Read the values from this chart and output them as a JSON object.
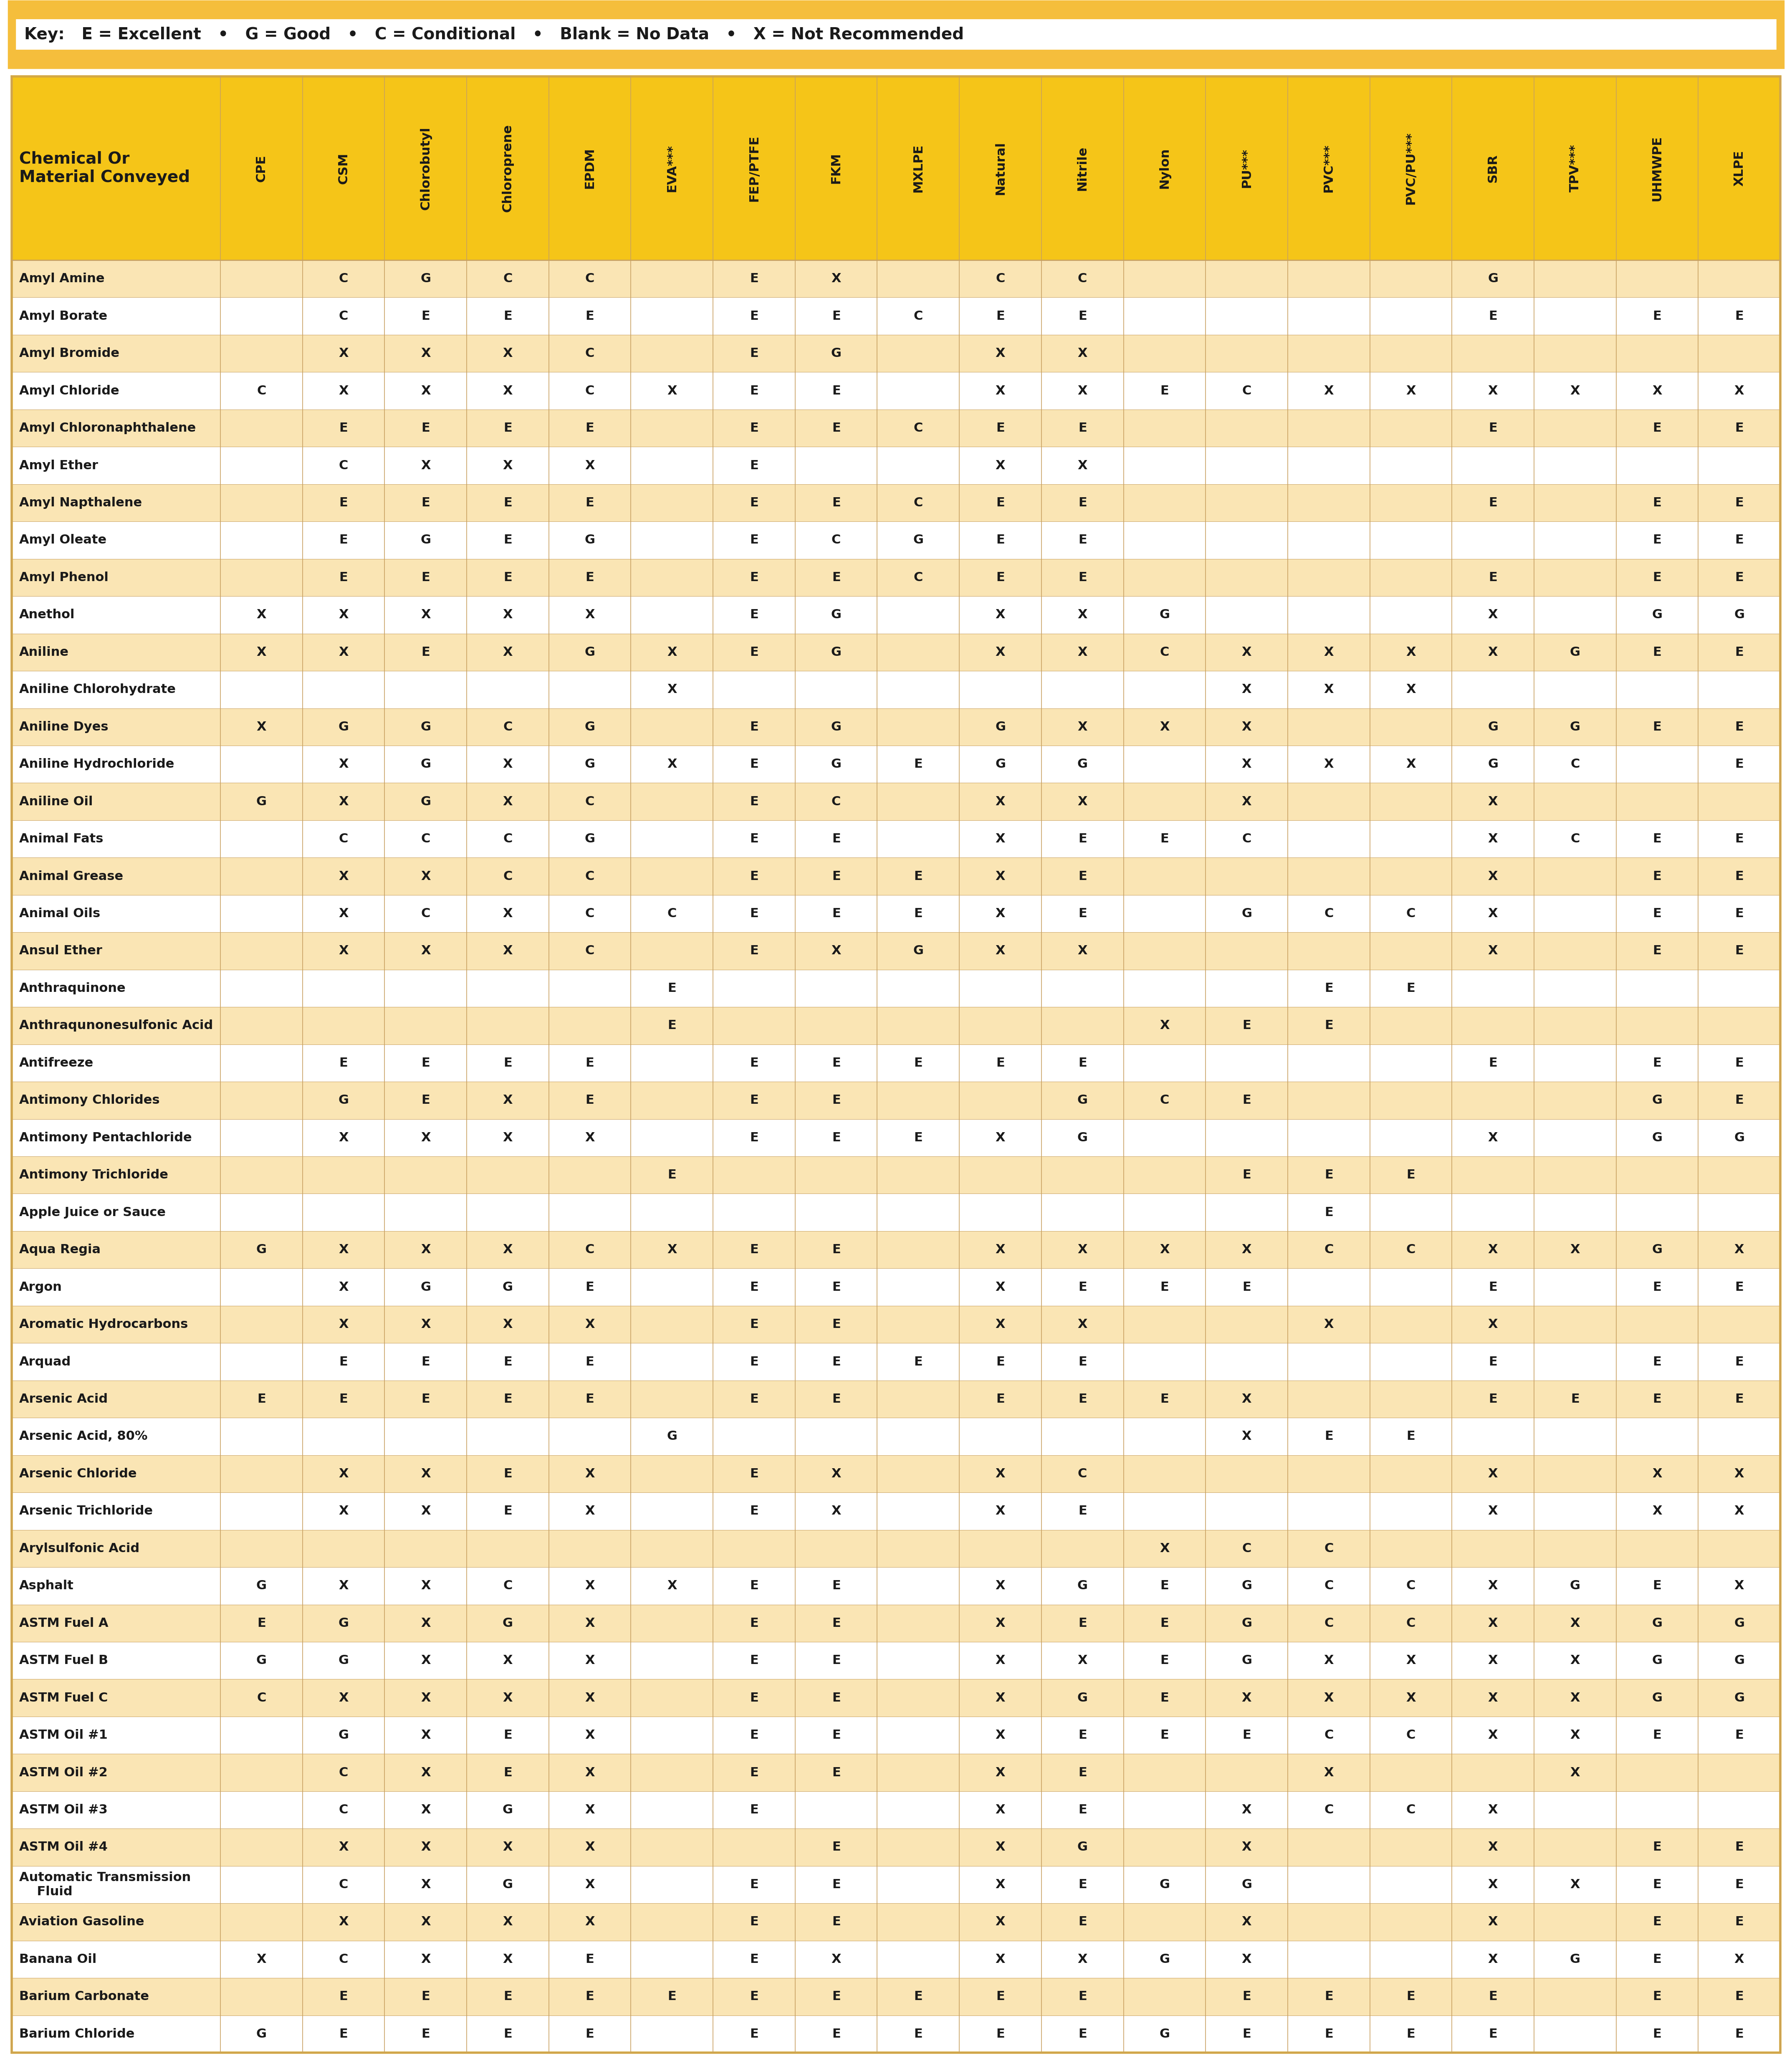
{
  "key_text": "Key:   E = Excellent   •   G = Good   •   C = Conditional   •   Blank = No Data   •   X = Not Recommended",
  "header_row": [
    "Chemical Or\nMaterial Conveyed",
    "CPE",
    "CSM",
    "Chlorobutyl",
    "Chloroprene",
    "EPDM",
    "EVA***",
    "FEP/PTFE",
    "FKM",
    "MXLPE",
    "Natural",
    "Nitrile",
    "Nylon",
    "PU***",
    "PVC***",
    "PVC/PU***",
    "SBR",
    "TPV***",
    "UHMWPE",
    "XLPE"
  ],
  "rows": [
    [
      "Amyl Amine",
      "",
      "C",
      "G",
      "C",
      "C",
      "",
      "E",
      "X",
      "",
      "C",
      "C",
      "",
      "",
      "",
      "",
      "G",
      "",
      "",
      ""
    ],
    [
      "Amyl Borate",
      "",
      "C",
      "E",
      "E",
      "E",
      "",
      "E",
      "E",
      "C",
      "E",
      "E",
      "",
      "",
      "",
      "",
      "E",
      "",
      "E",
      "E"
    ],
    [
      "Amyl Bromide",
      "",
      "X",
      "X",
      "X",
      "C",
      "",
      "E",
      "G",
      "",
      "X",
      "X",
      "",
      "",
      "",
      "",
      "",
      "",
      "",
      ""
    ],
    [
      "Amyl Chloride",
      "C",
      "X",
      "X",
      "X",
      "C",
      "X",
      "E",
      "E",
      "",
      "X",
      "X",
      "E",
      "C",
      "X",
      "X",
      "X",
      "X",
      "X",
      "X"
    ],
    [
      "Amyl Chloronaphthalene",
      "",
      "E",
      "E",
      "E",
      "E",
      "",
      "E",
      "E",
      "C",
      "E",
      "E",
      "",
      "",
      "",
      "",
      "E",
      "",
      "E",
      "E"
    ],
    [
      "Amyl Ether",
      "",
      "C",
      "X",
      "X",
      "X",
      "",
      "E",
      "",
      "",
      "X",
      "X",
      "",
      "",
      "",
      "",
      "",
      "",
      "",
      ""
    ],
    [
      "Amyl Napthalene",
      "",
      "E",
      "E",
      "E",
      "E",
      "",
      "E",
      "E",
      "C",
      "E",
      "E",
      "",
      "",
      "",
      "",
      "E",
      "",
      "E",
      "E"
    ],
    [
      "Amyl Oleate",
      "",
      "E",
      "G",
      "E",
      "G",
      "",
      "E",
      "C",
      "G",
      "E",
      "E",
      "",
      "",
      "",
      "",
      "",
      "",
      "E",
      "E"
    ],
    [
      "Amyl Phenol",
      "",
      "E",
      "E",
      "E",
      "E",
      "",
      "E",
      "E",
      "C",
      "E",
      "E",
      "",
      "",
      "",
      "",
      "E",
      "",
      "E",
      "E"
    ],
    [
      "Anethol",
      "X",
      "X",
      "X",
      "X",
      "X",
      "",
      "E",
      "G",
      "",
      "X",
      "X",
      "G",
      "",
      "",
      "",
      "X",
      "",
      "G",
      "G"
    ],
    [
      "Aniline",
      "X",
      "X",
      "E",
      "X",
      "G",
      "X",
      "E",
      "G",
      "",
      "X",
      "X",
      "C",
      "X",
      "X",
      "X",
      "X",
      "G",
      "E",
      "E"
    ],
    [
      "Aniline Chlorohydrate",
      "",
      "",
      "",
      "",
      "",
      "X",
      "",
      "",
      "",
      "",
      "",
      "",
      "X",
      "X",
      "X",
      "",
      "",
      "",
      ""
    ],
    [
      "Aniline Dyes",
      "X",
      "G",
      "G",
      "C",
      "G",
      "",
      "E",
      "G",
      "",
      "G",
      "X",
      "X",
      "X",
      "",
      "",
      "G",
      "G",
      "E",
      "E"
    ],
    [
      "Aniline Hydrochloride",
      "",
      "X",
      "G",
      "X",
      "G",
      "X",
      "E",
      "G",
      "E",
      "G",
      "G",
      "",
      "X",
      "X",
      "X",
      "G",
      "C",
      "",
      "E"
    ],
    [
      "Aniline Oil",
      "G",
      "X",
      "G",
      "X",
      "C",
      "",
      "E",
      "C",
      "",
      "X",
      "X",
      "",
      "X",
      "",
      "",
      "X",
      "",
      "",
      ""
    ],
    [
      "Animal Fats",
      "",
      "C",
      "C",
      "C",
      "G",
      "",
      "E",
      "E",
      "",
      "X",
      "E",
      "E",
      "C",
      "",
      "",
      "X",
      "C",
      "E",
      "E"
    ],
    [
      "Animal Grease",
      "",
      "X",
      "X",
      "C",
      "C",
      "",
      "E",
      "E",
      "E",
      "X",
      "E",
      "",
      "",
      "",
      "",
      "X",
      "",
      "E",
      "E"
    ],
    [
      "Animal Oils",
      "",
      "X",
      "C",
      "X",
      "C",
      "C",
      "E",
      "E",
      "E",
      "X",
      "E",
      "",
      "G",
      "C",
      "C",
      "X",
      "",
      "E",
      "E"
    ],
    [
      "Ansul Ether",
      "",
      "X",
      "X",
      "X",
      "C",
      "",
      "E",
      "X",
      "G",
      "X",
      "X",
      "",
      "",
      "",
      "",
      "X",
      "",
      "E",
      "E"
    ],
    [
      "Anthraquinone",
      "",
      "",
      "",
      "",
      "",
      "E",
      "",
      "",
      "",
      "",
      "",
      "",
      "",
      "E",
      "E",
      "",
      "",
      "",
      ""
    ],
    [
      "Anthraqunonesulfonic Acid",
      "",
      "",
      "",
      "",
      "",
      "E",
      "",
      "",
      "",
      "",
      "",
      "X",
      "E",
      "E",
      "",
      "",
      "",
      "",
      ""
    ],
    [
      "Antifreeze",
      "",
      "E",
      "E",
      "E",
      "E",
      "",
      "E",
      "E",
      "E",
      "E",
      "E",
      "",
      "",
      "",
      "",
      "E",
      "",
      "E",
      "E"
    ],
    [
      "Antimony Chlorides",
      "",
      "G",
      "E",
      "X",
      "E",
      "",
      "E",
      "E",
      "",
      "",
      "G",
      "C",
      "E",
      "",
      "",
      "",
      "",
      "G",
      "E"
    ],
    [
      "Antimony Pentachloride",
      "",
      "X",
      "X",
      "X",
      "X",
      "",
      "E",
      "E",
      "E",
      "X",
      "G",
      "",
      "",
      "",
      "",
      "X",
      "",
      "G",
      "G"
    ],
    [
      "Antimony Trichloride",
      "",
      "",
      "",
      "",
      "",
      "E",
      "",
      "",
      "",
      "",
      "",
      "",
      "E",
      "E",
      "E",
      "",
      "",
      "",
      ""
    ],
    [
      "Apple Juice or Sauce",
      "",
      "",
      "",
      "",
      "",
      "",
      "",
      "",
      "",
      "",
      "",
      "",
      "",
      "E",
      "",
      "",
      "",
      "",
      ""
    ],
    [
      "Aqua Regia",
      "G",
      "X",
      "X",
      "X",
      "C",
      "X",
      "E",
      "E",
      "",
      "X",
      "X",
      "X",
      "X",
      "C",
      "C",
      "X",
      "X",
      "G",
      "X"
    ],
    [
      "Argon",
      "",
      "X",
      "G",
      "G",
      "E",
      "",
      "E",
      "E",
      "",
      "X",
      "E",
      "E",
      "E",
      "",
      "",
      "E",
      "",
      "E",
      "E"
    ],
    [
      "Aromatic Hydrocarbons",
      "",
      "X",
      "X",
      "X",
      "X",
      "",
      "E",
      "E",
      "",
      "X",
      "X",
      "",
      "",
      "X",
      "",
      "X",
      "",
      "",
      ""
    ],
    [
      "Arquad",
      "",
      "E",
      "E",
      "E",
      "E",
      "",
      "E",
      "E",
      "E",
      "E",
      "E",
      "",
      "",
      "",
      "",
      "E",
      "",
      "E",
      "E"
    ],
    [
      "Arsenic Acid",
      "E",
      "E",
      "E",
      "E",
      "E",
      "",
      "E",
      "E",
      "",
      "E",
      "E",
      "E",
      "X",
      "",
      "",
      "E",
      "E",
      "E",
      "E"
    ],
    [
      "Arsenic Acid, 80%",
      "",
      "",
      "",
      "",
      "",
      "G",
      "",
      "",
      "",
      "",
      "",
      "",
      "X",
      "E",
      "E",
      "",
      "",
      "",
      ""
    ],
    [
      "Arsenic Chloride",
      "",
      "X",
      "X",
      "E",
      "X",
      "",
      "E",
      "X",
      "",
      "X",
      "C",
      "",
      "",
      "",
      "",
      "X",
      "",
      "X",
      "X"
    ],
    [
      "Arsenic Trichloride",
      "",
      "X",
      "X",
      "E",
      "X",
      "",
      "E",
      "X",
      "",
      "X",
      "E",
      "",
      "",
      "",
      "",
      "X",
      "",
      "X",
      "X"
    ],
    [
      "Arylsulfonic Acid",
      "",
      "",
      "",
      "",
      "",
      "",
      "",
      "",
      "",
      "",
      "",
      "X",
      "C",
      "C",
      "",
      "",
      "",
      "",
      ""
    ],
    [
      "Asphalt",
      "G",
      "X",
      "X",
      "C",
      "X",
      "X",
      "E",
      "E",
      "",
      "X",
      "G",
      "E",
      "G",
      "C",
      "C",
      "X",
      "G",
      "E",
      "X"
    ],
    [
      "ASTM Fuel A",
      "E",
      "G",
      "X",
      "G",
      "X",
      "",
      "E",
      "E",
      "",
      "X",
      "E",
      "E",
      "G",
      "C",
      "C",
      "X",
      "X",
      "G",
      "G"
    ],
    [
      "ASTM Fuel B",
      "G",
      "G",
      "X",
      "X",
      "X",
      "",
      "E",
      "E",
      "",
      "X",
      "X",
      "E",
      "G",
      "X",
      "X",
      "X",
      "X",
      "G",
      "G"
    ],
    [
      "ASTM Fuel C",
      "C",
      "X",
      "X",
      "X",
      "X",
      "",
      "E",
      "E",
      "",
      "X",
      "G",
      "E",
      "X",
      "X",
      "X",
      "X",
      "X",
      "G",
      "G"
    ],
    [
      "ASTM Oil #1",
      "",
      "G",
      "X",
      "E",
      "X",
      "",
      "E",
      "E",
      "",
      "X",
      "E",
      "E",
      "E",
      "C",
      "C",
      "X",
      "X",
      "E",
      "E"
    ],
    [
      "ASTM Oil #2",
      "",
      "C",
      "X",
      "E",
      "X",
      "",
      "E",
      "E",
      "",
      "X",
      "E",
      "",
      "",
      "X",
      "",
      "",
      "X",
      "",
      ""
    ],
    [
      "ASTM Oil #3",
      "",
      "C",
      "X",
      "G",
      "X",
      "",
      "E",
      "",
      "",
      "X",
      "E",
      "",
      "X",
      "C",
      "C",
      "X",
      "",
      "",
      ""
    ],
    [
      "ASTM Oil #4",
      "",
      "X",
      "X",
      "X",
      "X",
      "",
      "",
      "E",
      "",
      "X",
      "G",
      "",
      "X",
      "",
      "",
      "X",
      "",
      "E",
      "E"
    ],
    [
      "Automatic Transmission\n    Fluid",
      "",
      "C",
      "X",
      "G",
      "X",
      "",
      "E",
      "E",
      "",
      "X",
      "E",
      "G",
      "G",
      "",
      "",
      "X",
      "X",
      "E",
      "E"
    ],
    [
      "Aviation Gasoline",
      "",
      "X",
      "X",
      "X",
      "X",
      "",
      "E",
      "E",
      "",
      "X",
      "E",
      "",
      "X",
      "",
      "",
      "X",
      "",
      "E",
      "E"
    ],
    [
      "Banana Oil",
      "X",
      "C",
      "X",
      "X",
      "E",
      "",
      "E",
      "X",
      "",
      "X",
      "X",
      "G",
      "X",
      "",
      "",
      "X",
      "G",
      "E",
      "X"
    ],
    [
      "Barium Carbonate",
      "",
      "E",
      "E",
      "E",
      "E",
      "E",
      "E",
      "E",
      "E",
      "E",
      "E",
      "",
      "E",
      "E",
      "E",
      "E",
      "",
      "E",
      "E"
    ],
    [
      "Barium Chloride",
      "G",
      "E",
      "E",
      "E",
      "E",
      "",
      "E",
      "E",
      "E",
      "E",
      "E",
      "G",
      "E",
      "E",
      "E",
      "E",
      "",
      "E",
      "E"
    ]
  ],
  "bg_color_key": "#FFFFFF",
  "bg_color_key_stripe": "#F5BE3C",
  "bg_color_header": "#F5C518",
  "bg_color_odd": "#FAE5B4",
  "bg_color_even": "#FFFFFF",
  "border_outer": "#D4A843",
  "border_table": "#C8A060",
  "border_inner": "#C8A060",
  "text_color": "#1A1A1A",
  "key_border_color": "#F5BE3C"
}
